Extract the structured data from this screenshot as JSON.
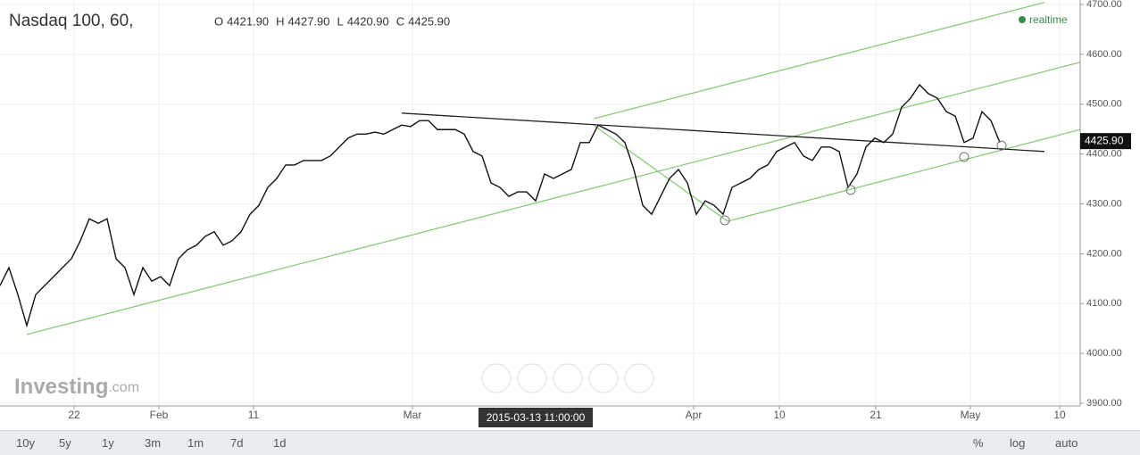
{
  "chart_data": {
    "type": "line",
    "title": "Nasdaq 100, 60,",
    "ohlc": [
      {
        "label": "O",
        "value": "4421.90"
      },
      {
        "label": "H",
        "value": "4427.90"
      },
      {
        "label": "L",
        "value": "4420.90"
      },
      {
        "label": "C",
        "value": "4425.90"
      }
    ],
    "status": "realtime",
    "watermark": "Investing",
    "watermark_suffix": ".com",
    "color": "#111111",
    "x": [
      0,
      1,
      2,
      3,
      4,
      5,
      6,
      7,
      8,
      9,
      10,
      11,
      12,
      13,
      14,
      15,
      16,
      17,
      18,
      19,
      20,
      21,
      22,
      23,
      24,
      25,
      26,
      27,
      28,
      29,
      30,
      31,
      32,
      33,
      34,
      35,
      36,
      37,
      38,
      39,
      40,
      41,
      42,
      43,
      44,
      45,
      46,
      47,
      48,
      49,
      50,
      51,
      52,
      53,
      54,
      55,
      56,
      57,
      58,
      59,
      60,
      61,
      62,
      63,
      64,
      65,
      66,
      67,
      68,
      69,
      70,
      71,
      72,
      73,
      74,
      75,
      76,
      77,
      78,
      79,
      80,
      81,
      82,
      83,
      84,
      85,
      86,
      87,
      88,
      89,
      90,
      91,
      92,
      93,
      94,
      95,
      96,
      97,
      98,
      99,
      100,
      101,
      102,
      103,
      104,
      105,
      106,
      107,
      108,
      109,
      110,
      111,
      112
    ],
    "values": [
      4136,
      4172,
      4118,
      4056,
      4118,
      4136,
      4154,
      4172,
      4190,
      4226,
      4270,
      4261,
      4270,
      4190,
      4172,
      4118,
      4172,
      4145,
      4154,
      4136,
      4190,
      4208,
      4217,
      4235,
      4244,
      4217,
      4226,
      4244,
      4279,
      4297,
      4333,
      4351,
      4378,
      4378,
      4387,
      4387,
      4387,
      4396,
      4414,
      4432,
      4440,
      4440,
      4444,
      4440,
      4449,
      4458,
      4455,
      4467,
      4467,
      4449,
      4449,
      4449,
      4440,
      4405,
      4396,
      4342,
      4333,
      4315,
      4324,
      4324,
      4306,
      4360,
      4351,
      4360,
      4369,
      4423,
      4423,
      4458,
      4449,
      4440,
      4423,
      4369,
      4297,
      4279,
      4315,
      4351,
      4369,
      4342,
      4279,
      4306,
      4297,
      4279,
      4333,
      4342,
      4351,
      4369,
      4378,
      4405,
      4414,
      4423,
      4396,
      4387,
      4414,
      4414,
      4405,
      4333,
      4360,
      4414,
      4432,
      4423,
      4440,
      4494,
      4512,
      4539,
      4521,
      4512,
      4485,
      4476,
      4423,
      4432,
      4485,
      4467,
      4423
    ],
    "xlim": [
      0,
      121
    ],
    "ylim": [
      3900,
      4700
    ],
    "yticks": [
      {
        "value": 3900,
        "label": "3900.00"
      },
      {
        "value": 4000,
        "label": "4000.00"
      },
      {
        "value": 4100,
        "label": "4100.00"
      },
      {
        "value": 4200,
        "label": "4200.00"
      },
      {
        "value": 4300,
        "label": "4300.00"
      },
      {
        "value": 4400,
        "label": "4400.00"
      },
      {
        "value": 4500,
        "label": "4500.00"
      },
      {
        "value": 4600,
        "label": "4600.00"
      },
      {
        "value": 4700,
        "label": "4700.00"
      }
    ],
    "xticks": [
      {
        "value": 8.3,
        "label": "22"
      },
      {
        "value": 17.8,
        "label": "Feb"
      },
      {
        "value": 28.4,
        "label": "11"
      },
      {
        "value": 46.2,
        "label": "Mar"
      },
      {
        "value": 77.7,
        "label": "Apr"
      },
      {
        "value": 87.3,
        "label": "10"
      },
      {
        "value": 98.1,
        "label": "21"
      },
      {
        "value": 108.7,
        "label": "May"
      },
      {
        "value": 118.7,
        "label": "10"
      }
    ],
    "crosshair": {
      "value": 60,
      "label": "2015-03-13 11:00:00"
    },
    "last_price": {
      "value": 4425.9,
      "label": "4425.90"
    },
    "grid": true,
    "lines": [
      {
        "color": "#8cc97a",
        "x": [
          3,
          121
        ],
        "y": [
          4038,
          4584
        ]
      },
      {
        "color": "#8cc97a",
        "x": [
          81.5,
          121
        ],
        "y": [
          4265,
          4449
        ]
      },
      {
        "color": "#8cc97a",
        "x": [
          66.5,
          117
        ],
        "y": [
          4471,
          4704
        ]
      },
      {
        "color": "#8cc97a",
        "x": [
          66.5,
          81.5
        ],
        "y": [
          4458,
          4265
        ]
      },
      {
        "color": "#222222",
        "x": [
          45,
          117
        ],
        "y": [
          4482,
          4405
        ]
      }
    ],
    "markers": {
      "x": [
        81.2,
        95.3,
        108,
        112.2
      ],
      "y": [
        4267,
        4328,
        4394,
        4417
      ]
    },
    "toolbar": {
      "ranges": [
        "10y",
        "5y",
        "1y",
        "3m",
        "1m",
        "7d",
        "1d"
      ],
      "options": [
        "%",
        "log",
        "auto"
      ]
    }
  }
}
